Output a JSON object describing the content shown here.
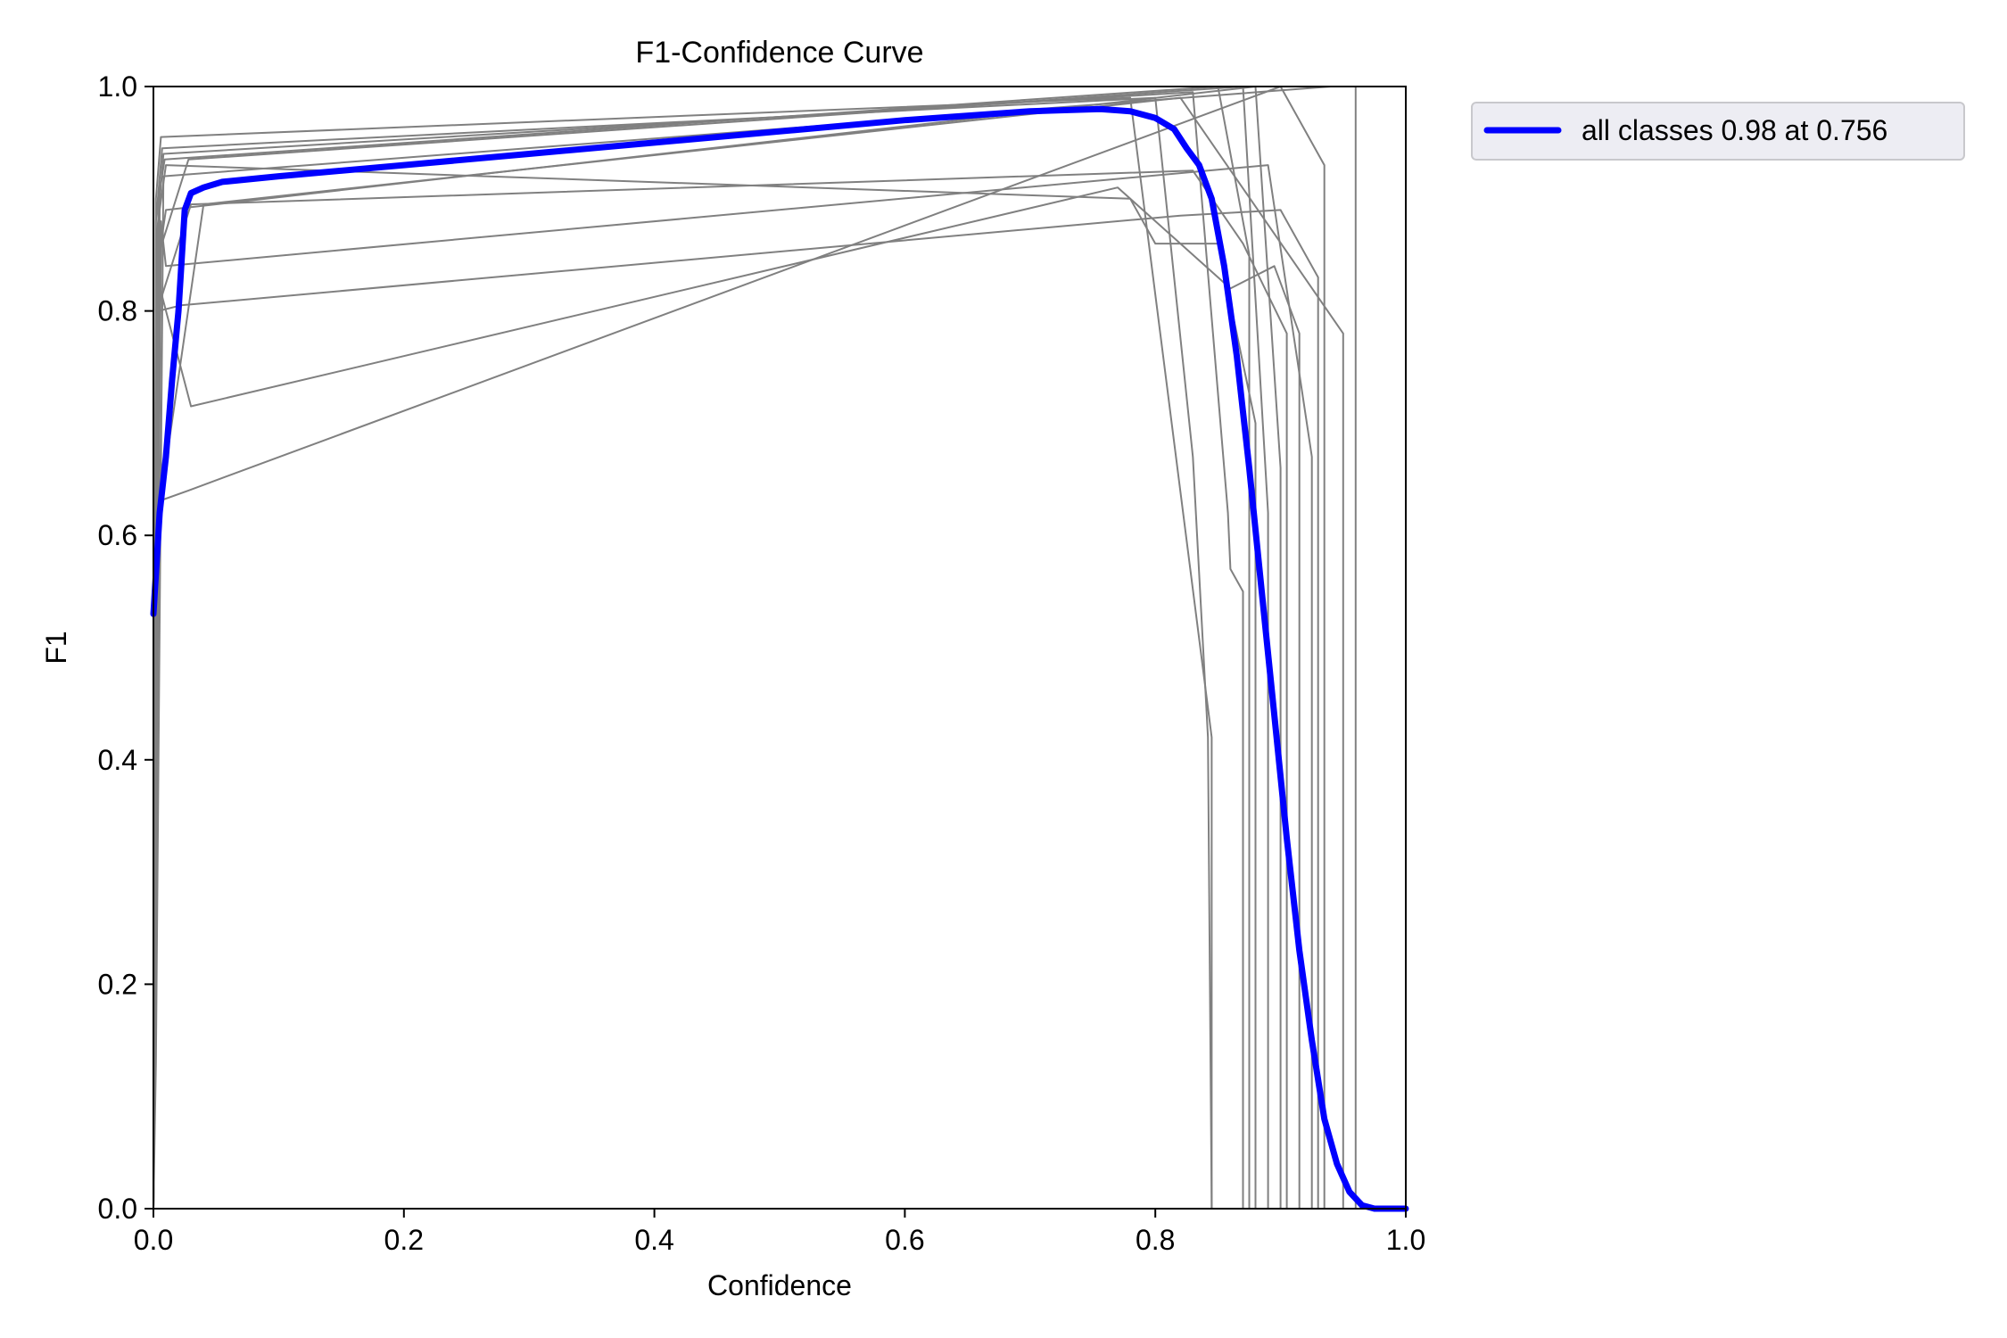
{
  "chart_data": {
    "type": "line",
    "title": "F1-Confidence Curve",
    "xlabel": "Confidence",
    "ylabel": "F1",
    "xlim": [
      0,
      1
    ],
    "ylim": [
      0,
      1
    ],
    "xticks": [
      "0.0",
      "0.2",
      "0.4",
      "0.6",
      "0.8",
      "1.0"
    ],
    "yticks": [
      "0.0",
      "0.2",
      "0.4",
      "0.6",
      "0.8",
      "1.0"
    ],
    "grid": false,
    "legend_position": "outside-top-right",
    "series": [
      {
        "name": "all classes 0.98 at 0.756",
        "color": "#0000ff",
        "role": "aggregate",
        "x": [
          0.0,
          0.005,
          0.01,
          0.015,
          0.02,
          0.025,
          0.03,
          0.04,
          0.055,
          0.1,
          0.2,
          0.3,
          0.4,
          0.5,
          0.6,
          0.7,
          0.756,
          0.78,
          0.8,
          0.815,
          0.825,
          0.835,
          0.845,
          0.855,
          0.865,
          0.875,
          0.885,
          0.895,
          0.905,
          0.915,
          0.925,
          0.935,
          0.945,
          0.955,
          0.965,
          0.975,
          0.985,
          1.0
        ],
        "y": [
          0.53,
          0.62,
          0.67,
          0.74,
          0.8,
          0.89,
          0.905,
          0.91,
          0.915,
          0.92,
          0.93,
          0.94,
          0.95,
          0.96,
          0.97,
          0.978,
          0.98,
          0.978,
          0.972,
          0.962,
          0.945,
          0.93,
          0.9,
          0.84,
          0.76,
          0.66,
          0.55,
          0.44,
          0.33,
          0.23,
          0.15,
          0.08,
          0.04,
          0.015,
          0.003,
          0.0,
          0.0,
          0.0
        ]
      }
    ],
    "class_series": [
      {
        "color": "#808080",
        "x": [
          0.0,
          0.002,
          0.006,
          0.78,
          0.845,
          0.845,
          1.0
        ],
        "y": [
          0.0,
          0.9,
          0.955,
          0.99,
          0.42,
          0.0,
          0.0
        ]
      },
      {
        "color": "#808080",
        "x": [
          0.0,
          0.002,
          0.007,
          0.8,
          0.83,
          0.842,
          0.845,
          1.0
        ],
        "y": [
          0.0,
          0.88,
          0.945,
          0.99,
          0.67,
          0.42,
          0.0,
          0.0
        ]
      },
      {
        "color": "#808080",
        "x": [
          0.0,
          0.003,
          0.008,
          0.83,
          0.858,
          0.86,
          0.87,
          0.87,
          1.0
        ],
        "y": [
          0.0,
          0.87,
          0.94,
          0.995,
          0.62,
          0.57,
          0.55,
          0.0,
          0.0
        ]
      },
      {
        "color": "#808080",
        "x": [
          0.0,
          0.004,
          0.009,
          0.85,
          0.875,
          0.875,
          1.0
        ],
        "y": [
          0.0,
          0.9,
          0.935,
          1.0,
          0.85,
          0.0,
          0.0
        ]
      },
      {
        "color": "#808080",
        "x": [
          0.0,
          0.005,
          0.01,
          0.78,
          0.8,
          0.85,
          0.88,
          0.88,
          1.0
        ],
        "y": [
          0.0,
          0.89,
          0.93,
          0.9,
          0.86,
          0.86,
          0.7,
          0.0,
          0.0
        ]
      },
      {
        "color": "#808080",
        "x": [
          0.0,
          0.004,
          0.028,
          0.87,
          0.89,
          0.89,
          1.0
        ],
        "y": [
          0.0,
          0.85,
          0.935,
          1.0,
          0.62,
          0.0,
          0.0
        ]
      },
      {
        "color": "#808080",
        "x": [
          0.0,
          0.006,
          0.01,
          0.88,
          0.9,
          0.9,
          1.0
        ],
        "y": [
          0.0,
          0.86,
          0.89,
          1.0,
          0.66,
          0.0,
          0.0
        ]
      },
      {
        "color": "#808080",
        "x": [
          0.0,
          0.003,
          0.03,
          0.83,
          0.87,
          0.905,
          0.905,
          1.0
        ],
        "y": [
          0.0,
          0.8,
          0.895,
          0.925,
          0.86,
          0.78,
          0.0,
          0.0
        ]
      },
      {
        "color": "#808080",
        "x": [
          0.0,
          0.003,
          0.03,
          0.77,
          0.86,
          0.895,
          0.915,
          0.915,
          1.0
        ],
        "y": [
          0.0,
          0.83,
          0.715,
          0.91,
          0.82,
          0.84,
          0.78,
          0.0,
          0.0
        ]
      },
      {
        "color": "#808080",
        "x": [
          0.0,
          0.006,
          0.01,
          0.89,
          0.925,
          0.925,
          1.0
        ],
        "y": [
          0.0,
          0.88,
          0.84,
          0.93,
          0.67,
          0.0,
          0.0
        ]
      },
      {
        "color": "#808080",
        "x": [
          0.0,
          0.004,
          0.022,
          0.82,
          0.9,
          0.93,
          0.93,
          1.0
        ],
        "y": [
          0.0,
          0.8,
          0.805,
          0.885,
          0.89,
          0.83,
          0.0,
          0.0
        ]
      },
      {
        "color": "#808080",
        "x": [
          0.0,
          0.003,
          0.028,
          0.9,
          0.935,
          0.935,
          1.0
        ],
        "y": [
          0.0,
          0.63,
          0.64,
          1.0,
          0.93,
          0.0,
          0.0
        ]
      },
      {
        "color": "#808080",
        "x": [
          0.0,
          0.003,
          0.04,
          0.82,
          0.95,
          0.95,
          1.0
        ],
        "y": [
          0.0,
          0.61,
          0.895,
          0.99,
          0.78,
          0.0,
          0.0
        ]
      },
      {
        "color": "#808080",
        "x": [
          0.0,
          0.002,
          0.008,
          0.94,
          0.96,
          0.96,
          1.0
        ],
        "y": [
          0.0,
          0.13,
          0.92,
          1.0,
          1.0,
          0.0,
          0.0
        ]
      }
    ]
  }
}
